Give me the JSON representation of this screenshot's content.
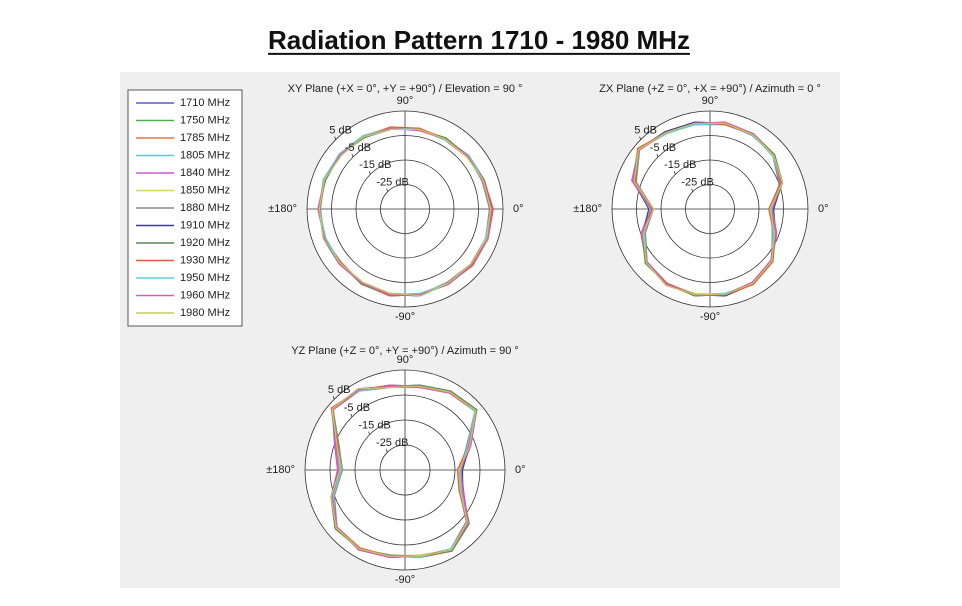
{
  "title": "Radiation Pattern 1710 - 1980 MHz",
  "chart_data": [
    {
      "type": "polar",
      "title": "XY Plane (+X = 0°, +Y = +90°) / Elevation = 90 °",
      "x": [
        0,
        20,
        40,
        60,
        80,
        100,
        120,
        140,
        160,
        180,
        200,
        220,
        240,
        260,
        280,
        300,
        320,
        340
      ],
      "rlim": [
        -35,
        5
      ],
      "rticks": [
        {
          "value": 5,
          "label": "5 dB"
        },
        {
          "value": -5,
          "label": "-5 dB"
        },
        {
          "value": -15,
          "label": "-15 dB"
        },
        {
          "value": -25,
          "label": "-25 dB"
        }
      ],
      "thetaticks": [
        {
          "value": 90,
          "label": "90°"
        },
        {
          "value": 0,
          "label": "0°"
        },
        {
          "value": -90,
          "label": "-90°"
        },
        {
          "value": 180,
          "label": "±180°"
        }
      ],
      "series": [
        {
          "name": "1710 MHz",
          "color": "#5a5ad8",
          "values": [
            0,
            -1,
            -1.5,
            -2,
            -2,
            -1.5,
            -1,
            -0.5,
            0,
            0,
            0,
            -0.5,
            0,
            0.5,
            0.5,
            0,
            0.5,
            0.5
          ]
        },
        {
          "name": "1750 MHz",
          "color": "#4caf50",
          "values": [
            0.5,
            -0.5,
            -1,
            -2,
            -2.5,
            -1.5,
            -0.5,
            -0.5,
            0.5,
            0,
            -0.5,
            -0.5,
            0.5,
            1,
            0.5,
            0.5,
            0.5,
            1
          ]
        },
        {
          "name": "1785 MHz",
          "color": "#e8734a",
          "values": [
            -0.5,
            -1,
            -2,
            -2.5,
            -2,
            -1,
            -1,
            0,
            0,
            0.5,
            0,
            -1,
            0,
            0.5,
            1,
            0,
            0,
            0.5
          ]
        },
        {
          "name": "1805 MHz",
          "color": "#5bc8d6",
          "values": [
            0,
            -1.5,
            -1.5,
            -1.5,
            -2,
            -2,
            -1.5,
            -0.5,
            -0.5,
            0,
            0.5,
            -0.5,
            -0.5,
            0,
            0.5,
            0.5,
            1,
            0
          ]
        },
        {
          "name": "1840 MHz",
          "color": "#c85bd6",
          "values": [
            1,
            -0.5,
            -1,
            -2,
            -1.5,
            -1.5,
            -1,
            -1,
            0,
            0.5,
            0,
            0,
            0,
            1,
            0.5,
            0,
            0.5,
            1
          ]
        },
        {
          "name": "1850 MHz",
          "color": "#d6d65b",
          "values": [
            0,
            -1,
            -2,
            -2,
            -2.5,
            -1,
            -0.5,
            -0.5,
            0.5,
            0,
            0,
            -0.5,
            0.5,
            0.5,
            0,
            0,
            0.5,
            0.5
          ]
        },
        {
          "name": "1880 MHz",
          "color": "#8a8a8a",
          "values": [
            -0.5,
            -1.5,
            -1.5,
            -2.5,
            -2,
            -1.5,
            -1,
            0,
            0,
            -0.5,
            0,
            -0.5,
            0,
            0,
            0.5,
            -0.5,
            0,
            0
          ]
        },
        {
          "name": "1910 MHz",
          "color": "#3a3a9a",
          "values": [
            0.5,
            -1,
            -1,
            -2,
            -2,
            -2,
            -1,
            -0.5,
            0,
            0,
            0.5,
            0,
            0,
            0.5,
            1,
            0,
            0.5,
            0.5
          ]
        },
        {
          "name": "1920 MHz",
          "color": "#5a8a5a",
          "values": [
            0,
            -0.5,
            -1.5,
            -1.5,
            -2,
            -1.5,
            -1.5,
            -0.5,
            -0.5,
            0.5,
            0,
            -0.5,
            0.5,
            0.5,
            0.5,
            0.5,
            0,
            0.5
          ]
        },
        {
          "name": "1930 MHz",
          "color": "#e05a3a",
          "values": [
            1,
            -1,
            -1.5,
            -2,
            -1.5,
            -1,
            -1,
            -0.5,
            0,
            0,
            0,
            -1,
            0,
            1,
            0.5,
            0,
            1,
            1
          ]
        },
        {
          "name": "1950 MHz",
          "color": "#5ad6d6",
          "values": [
            0,
            -1,
            -1,
            -2.5,
            -2,
            -1.5,
            -0.5,
            0,
            0.5,
            0,
            -0.5,
            -0.5,
            0,
            0.5,
            0,
            0,
            0.5,
            0
          ]
        },
        {
          "name": "1960 MHz",
          "color": "#e05ab0",
          "values": [
            0.5,
            -1.5,
            -1.5,
            -2,
            -2.5,
            -1.5,
            -1,
            -0.5,
            0,
            0.5,
            0,
            0,
            0,
            0.5,
            0.5,
            0.5,
            0.5,
            1
          ]
        },
        {
          "name": "1980 MHz",
          "color": "#c8c85a",
          "values": [
            0,
            -1,
            -2,
            -2,
            -2,
            -2,
            -1,
            -1,
            0,
            0,
            0.5,
            -0.5,
            -0.5,
            0,
            1,
            0,
            0,
            0.5
          ]
        }
      ]
    },
    {
      "type": "polar",
      "title": "ZX Plane (+Z = 0°, +X = +90°) / Azimuth = 0 °",
      "x": [
        0,
        20,
        40,
        60,
        80,
        100,
        120,
        140,
        160,
        180,
        200,
        220,
        240,
        260,
        280,
        300,
        320,
        340
      ],
      "rlim": [
        -35,
        5
      ],
      "rticks": [
        {
          "value": 5,
          "label": "5 dB"
        },
        {
          "value": -5,
          "label": "-5 dB"
        },
        {
          "value": -15,
          "label": "-15 dB"
        },
        {
          "value": -25,
          "label": "-25 dB"
        }
      ],
      "thetaticks": [
        {
          "value": 90,
          "label": "90°"
        },
        {
          "value": 0,
          "label": "0°"
        },
        {
          "value": -90,
          "label": "-90°"
        },
        {
          "value": 180,
          "label": "±180°"
        }
      ],
      "series": [
        {
          "name": "1710 MHz",
          "color": "#5a5ad8",
          "values": [
            -10,
            -4,
            -1,
            0,
            0.5,
            0.5,
            1,
            3,
            -2,
            -11,
            -6,
            -1,
            0.5,
            0.5,
            0.5,
            0,
            -2,
            -7
          ]
        },
        {
          "name": "1750 MHz",
          "color": "#4caf50",
          "values": [
            -9,
            -3.5,
            -1,
            0.5,
            0.5,
            0,
            1,
            3.5,
            -1.5,
            -10,
            -5.5,
            -1,
            0.5,
            1,
            0.5,
            0,
            -1.5,
            -6.5
          ]
        },
        {
          "name": "1785 MHz",
          "color": "#e8734a",
          "values": [
            -11,
            -4,
            -1.5,
            0,
            0,
            0.5,
            1.5,
            3,
            -2.5,
            -12,
            -6,
            -0.5,
            0,
            0.5,
            1,
            0.5,
            -2,
            -7.5
          ]
        },
        {
          "name": "1805 MHz",
          "color": "#5bc8d6",
          "values": [
            -10,
            -4.5,
            -1,
            -0.5,
            0.5,
            1,
            1,
            2.5,
            -2,
            -11.5,
            -6.5,
            -1.5,
            0.5,
            0.5,
            0,
            0,
            -2.5,
            -7
          ]
        },
        {
          "name": "1840 MHz",
          "color": "#c85bd6",
          "values": [
            -9.5,
            -3.5,
            -0.5,
            0,
            1,
            0.5,
            0.5,
            3,
            -1,
            -10.5,
            -5,
            -1,
            1,
            0.5,
            0.5,
            -0.5,
            -2,
            -6
          ]
        },
        {
          "name": "1850 MHz",
          "color": "#d6d65b",
          "values": [
            -10.5,
            -4,
            -1,
            0.5,
            0.5,
            0.5,
            1,
            3.5,
            -2,
            -11,
            -6,
            -1,
            0.5,
            0,
            0.5,
            0,
            -1.5,
            -7.5
          ]
        },
        {
          "name": "1880 MHz",
          "color": "#8a8a8a",
          "values": [
            -10,
            -5,
            -1.5,
            0,
            0,
            0,
            1,
            2.5,
            -3,
            -12,
            -7,
            -1.5,
            0,
            0.5,
            0.5,
            0.5,
            -2,
            -8
          ]
        },
        {
          "name": "1910 MHz",
          "color": "#3a3a9a",
          "values": [
            -9,
            -4,
            -1,
            0,
            0.5,
            1,
            1.5,
            3,
            -2,
            -10,
            -6,
            -1,
            0.5,
            0.5,
            1,
            0,
            -2.5,
            -7
          ]
        },
        {
          "name": "1920 MHz",
          "color": "#5a8a5a",
          "values": [
            -10,
            -3.5,
            -0.5,
            0.5,
            0.5,
            0.5,
            1,
            3,
            -1.5,
            -11,
            -5.5,
            -0.5,
            0.5,
            1,
            0.5,
            0,
            -2,
            -6.5
          ]
        },
        {
          "name": "1930 MHz",
          "color": "#e05a3a",
          "values": [
            -11,
            -4.5,
            -1,
            0,
            0,
            0.5,
            1,
            3.5,
            -2.5,
            -11.5,
            -6,
            -1,
            0,
            0.5,
            0.5,
            0.5,
            -1.5,
            -7
          ]
        },
        {
          "name": "1950 MHz",
          "color": "#5ad6d6",
          "values": [
            -10,
            -4,
            -1.5,
            0,
            0.5,
            0,
            0.5,
            3,
            -2,
            -10.5,
            -6.5,
            -1,
            0.5,
            0.5,
            0,
            0,
            -2,
            -7.5
          ]
        },
        {
          "name": "1960 MHz",
          "color": "#e05ab0",
          "values": [
            -9.5,
            -4,
            -1,
            0.5,
            1,
            0.5,
            1,
            2.5,
            -1.5,
            -11,
            -5.5,
            -1.5,
            0.5,
            0.5,
            0.5,
            -0.5,
            -2.5,
            -6.5
          ]
        },
        {
          "name": "1980 MHz",
          "color": "#c8c85a",
          "values": [
            -10.5,
            -3.5,
            -1,
            0,
            0.5,
            0.5,
            1,
            3,
            -2,
            -12,
            -6,
            -1,
            1,
            0.5,
            0.5,
            0,
            -2,
            -7
          ]
        }
      ]
    },
    {
      "type": "polar",
      "title": "YZ Plane (+Z = 0°, +Y = +90°) / Azimuth = 90 °",
      "x": [
        0,
        20,
        40,
        60,
        80,
        100,
        120,
        140,
        160,
        180,
        200,
        220,
        240,
        260,
        280,
        300,
        320,
        340
      ],
      "rlim": [
        -35,
        5
      ],
      "rticks": [
        {
          "value": 5,
          "label": "5 dB"
        },
        {
          "value": -5,
          "label": "-5 dB"
        },
        {
          "value": -15,
          "label": "-15 dB"
        },
        {
          "value": -25,
          "label": "-25 dB"
        }
      ],
      "thetaticks": [
        {
          "value": 90,
          "label": "90°"
        },
        {
          "value": 0,
          "label": "0°"
        },
        {
          "value": -90,
          "label": "-90°"
        },
        {
          "value": 180,
          "label": "±180°"
        }
      ],
      "series": [
        {
          "name": "1710 MHz",
          "color": "#5a5ad8",
          "values": [
            -13,
            -8,
            2,
            1,
            -1,
            -1,
            2,
            3,
            -6,
            -9,
            -4,
            1,
            1.5,
            0,
            0,
            2,
            -2,
            -11
          ]
        },
        {
          "name": "1750 MHz",
          "color": "#4caf50",
          "values": [
            -12,
            -7.5,
            2.5,
            1,
            -0.5,
            -1,
            2,
            3.5,
            -5.5,
            -8.5,
            -3.5,
            1,
            1.5,
            0.5,
            0,
            2,
            -1.5,
            -10.5
          ]
        },
        {
          "name": "1785 MHz",
          "color": "#e8734a",
          "values": [
            -14,
            -8.5,
            1.5,
            0.5,
            -1,
            -1.5,
            1.5,
            3,
            -6.5,
            -9.5,
            -4,
            0.5,
            1,
            0,
            0.5,
            2.5,
            -2,
            -11.5
          ]
        },
        {
          "name": "1805 MHz",
          "color": "#5bc8d6",
          "values": [
            -13,
            -8,
            2,
            1.5,
            -1.5,
            -1,
            2.5,
            2.5,
            -6,
            -9,
            -4.5,
            1,
            2,
            0,
            0,
            1.5,
            -2.5,
            -11
          ]
        },
        {
          "name": "1840 MHz",
          "color": "#c85bd6",
          "values": [
            -12.5,
            -7,
            2.5,
            1,
            -1,
            -0.5,
            2,
            3,
            -5,
            -8,
            -3.5,
            1.5,
            1.5,
            0.5,
            0,
            2,
            -2,
            -10
          ]
        },
        {
          "name": "1850 MHz",
          "color": "#d6d65b",
          "values": [
            -13.5,
            -8,
            2,
            0.5,
            -1,
            -1,
            2,
            3.5,
            -6,
            -9.5,
            -4,
            1,
            1,
            0,
            -0.5,
            2,
            -2,
            -11.5
          ]
        },
        {
          "name": "1880 MHz",
          "color": "#8a8a8a",
          "values": [
            -13,
            -9,
            1.5,
            1,
            -1.5,
            -1.5,
            1.5,
            2.5,
            -7,
            -10,
            -5,
            0.5,
            1.5,
            -0.5,
            0,
            1.5,
            -3,
            -12
          ]
        },
        {
          "name": "1910 MHz",
          "color": "#3a3a9a",
          "values": [
            -12,
            -8,
            2,
            1,
            -1,
            -1,
            2.5,
            3,
            -6,
            -8.5,
            -4,
            1,
            1.5,
            0,
            0.5,
            2,
            -2,
            -10.5
          ]
        },
        {
          "name": "1920 MHz",
          "color": "#5a8a5a",
          "values": [
            -13,
            -7.5,
            2.5,
            1.5,
            -0.5,
            -1,
            2,
            3,
            -5.5,
            -9,
            -3.5,
            1.5,
            1.5,
            0.5,
            0,
            2.5,
            -1.5,
            -11
          ]
        },
        {
          "name": "1930 MHz",
          "color": "#e05a3a",
          "values": [
            -14,
            -8,
            2,
            1,
            -1,
            -0.5,
            2,
            3.5,
            -6.5,
            -9,
            -4,
            1,
            1,
            0,
            0,
            2,
            -2.5,
            -12
          ]
        },
        {
          "name": "1950 MHz",
          "color": "#5ad6d6",
          "values": [
            -13,
            -8.5,
            1.5,
            1,
            -1,
            -1,
            1.5,
            3,
            -6,
            -9.5,
            -4.5,
            1,
            1.5,
            0,
            0.5,
            1.5,
            -2,
            -11
          ]
        },
        {
          "name": "1960 MHz",
          "color": "#e05ab0",
          "values": [
            -12.5,
            -8,
            2,
            0.5,
            -1.5,
            -1,
            2,
            2.5,
            -5.5,
            -8.5,
            -4,
            0.5,
            2,
            0.5,
            0,
            2,
            -2,
            -10.5
          ]
        },
        {
          "name": "1980 MHz",
          "color": "#c8c85a",
          "values": [
            -13.5,
            -7.5,
            2,
            1,
            -1,
            -1.5,
            2.5,
            3,
            -6,
            -9,
            -3.5,
            1,
            1.5,
            0,
            0,
            2,
            -2.5,
            -11.5
          ]
        }
      ]
    }
  ]
}
